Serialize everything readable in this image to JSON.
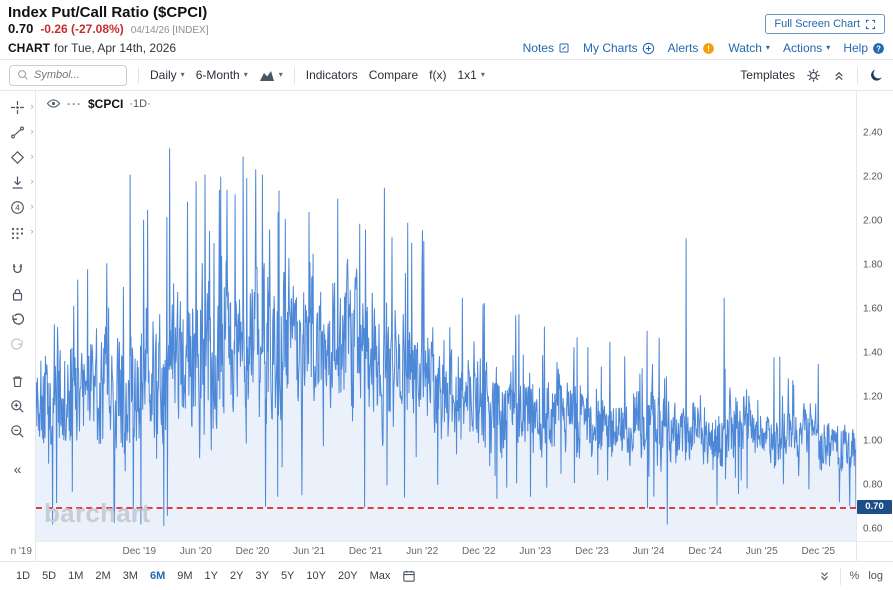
{
  "header": {
    "title": "Index Put/Call Ratio ($CPCI)",
    "price": "0.70",
    "change": "-0.26 (-27.08%)",
    "session": "04/14/26 [INDEX]",
    "full_screen": "Full Screen Chart",
    "chart_word": "CHART",
    "chart_for": "for Tue, Apr 14th, 2026",
    "links": {
      "notes": "Notes",
      "my_charts": "My Charts",
      "alerts": "Alerts",
      "watch": "Watch",
      "actions": "Actions",
      "help": "Help"
    }
  },
  "toolbar": {
    "symbol_placeholder": "Symbol...",
    "frequency": "Daily",
    "period": "6-Month",
    "indicators": "Indicators",
    "compare": "Compare",
    "fx": "f(x)",
    "layout": "1x1",
    "templates": "Templates"
  },
  "legend": {
    "symbol": "$CPCI",
    "interval_label": "·1D·"
  },
  "watermark": "barchart",
  "bottom": {
    "ranges": [
      "1D",
      "5D",
      "1M",
      "2M",
      "3M",
      "6M",
      "9M",
      "1Y",
      "2Y",
      "3Y",
      "5Y",
      "10Y",
      "20Y",
      "Max"
    ],
    "active_range": "6M",
    "percent": "%",
    "log": "log"
  },
  "icons": {
    "caret": "▾",
    "more": "···",
    "collapse_left": "«",
    "sub_caret": "›"
  },
  "colors": {
    "accent_blue": "#2368b0",
    "negative_red": "#c62f2f",
    "line_blue": "#4d87d7",
    "ref_red": "#e23d3d",
    "price_tag_navy": "#1d4e89",
    "alert_orange": "#f59e0b"
  },
  "chart_data": {
    "type": "line",
    "title": "Index Put/Call Ratio ($CPCI)",
    "symbol": "$CPCI",
    "interval": "1D",
    "last_price": 0.7,
    "change": -0.26,
    "change_pct": -27.08,
    "ylim": [
      0.545,
      2.59
    ],
    "y_ticks": [
      0.6,
      0.8,
      1.0,
      1.2,
      1.4,
      1.6,
      1.8,
      2.0,
      2.2,
      2.4
    ],
    "x_ticks": [
      {
        "label": "n '19",
        "f": -0.018
      },
      {
        "label": "Dec '19",
        "f": 0.126
      },
      {
        "label": "Jun '20",
        "f": 0.195
      },
      {
        "label": "Dec '20",
        "f": 0.264
      },
      {
        "label": "Jun '21",
        "f": 0.333
      },
      {
        "label": "Dec '21",
        "f": 0.402
      },
      {
        "label": "Jun '22",
        "f": 0.471
      },
      {
        "label": "Dec '22",
        "f": 0.54
      },
      {
        "label": "Jun '23",
        "f": 0.609
      },
      {
        "label": "Dec '23",
        "f": 0.678
      },
      {
        "label": "Jun '24",
        "f": 0.747
      },
      {
        "label": "Dec '24",
        "f": 0.816
      },
      {
        "label": "Jun '25",
        "f": 0.885
      },
      {
        "label": "Dec '25",
        "f": 0.954
      }
    ],
    "ref_line": {
      "value": 0.7,
      "label": "0.70",
      "style": "dashed"
    },
    "grid": false,
    "legend_position": "top-left",
    "points": 1830,
    "seed": 20260414,
    "mean_anchors": [
      [
        0.0,
        1.15,
        0.28
      ],
      [
        0.08,
        1.22,
        0.3
      ],
      [
        0.13,
        1.28,
        0.34
      ],
      [
        0.17,
        1.36,
        0.42
      ],
      [
        0.23,
        1.42,
        0.4
      ],
      [
        0.29,
        1.46,
        0.4
      ],
      [
        0.35,
        1.45,
        0.36
      ],
      [
        0.41,
        1.4,
        0.34
      ],
      [
        0.47,
        1.3,
        0.3
      ],
      [
        0.54,
        1.18,
        0.24
      ],
      [
        0.61,
        1.12,
        0.21
      ],
      [
        0.68,
        1.09,
        0.19
      ],
      [
        0.75,
        1.08,
        0.19
      ],
      [
        0.82,
        1.07,
        0.18
      ],
      [
        0.89,
        1.04,
        0.16
      ],
      [
        0.95,
        1.02,
        0.15
      ],
      [
        1.0,
        0.97,
        0.14
      ]
    ],
    "spikes": [
      [
        0.063,
        1.78
      ],
      [
        0.115,
        2.21
      ],
      [
        0.136,
        2.05
      ],
      [
        0.163,
        2.33
      ],
      [
        0.195,
        2.18
      ],
      [
        0.225,
        2.2
      ],
      [
        0.243,
        2.12
      ],
      [
        0.276,
        2.21
      ],
      [
        0.3,
        2.02
      ],
      [
        0.333,
        2.04
      ],
      [
        0.368,
        2.1
      ],
      [
        0.402,
        1.96
      ],
      [
        0.425,
        2.15
      ],
      [
        0.458,
        1.9
      ],
      [
        0.471,
        1.78
      ],
      [
        0.52,
        1.65
      ],
      [
        0.545,
        1.62
      ],
      [
        0.585,
        1.57
      ],
      [
        0.62,
        1.52
      ],
      [
        0.66,
        1.47
      ],
      [
        0.7,
        1.45
      ],
      [
        0.745,
        1.5
      ],
      [
        0.793,
        1.92
      ],
      [
        0.839,
        1.65
      ],
      [
        0.9,
        1.38
      ],
      [
        0.954,
        1.35
      ]
    ],
    "dips": [
      [
        0.02,
        0.62
      ],
      [
        0.095,
        0.66
      ],
      [
        0.128,
        0.62
      ],
      [
        0.16,
        0.66
      ],
      [
        0.3,
        0.88
      ],
      [
        0.49,
        0.8
      ],
      [
        0.56,
        0.84
      ],
      [
        0.64,
        0.85
      ],
      [
        0.77,
        0.62
      ],
      [
        0.86,
        0.82
      ],
      [
        0.93,
        0.84
      ]
    ],
    "line_color": "#4d87d7",
    "fill_color": "rgba(93,146,213,0.13)"
  }
}
